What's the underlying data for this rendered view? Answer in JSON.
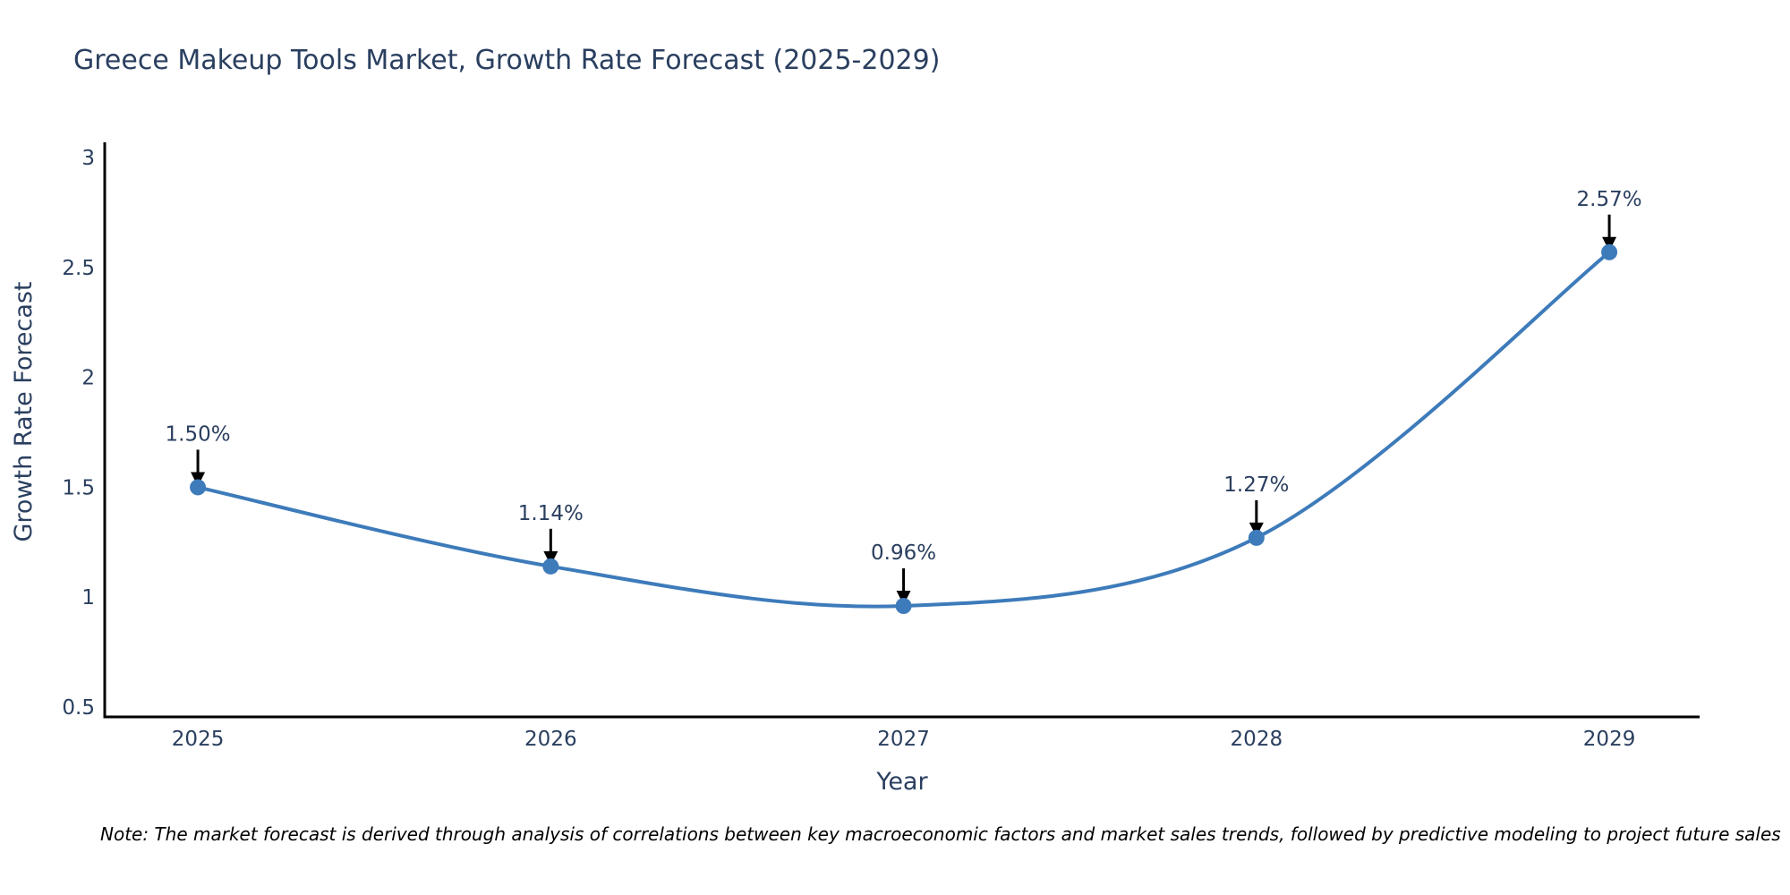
{
  "title": "Greece Makeup Tools Market, Growth Rate Forecast (2025-2029)",
  "note": "Note: The market forecast is derived through analysis of correlations between key macroeconomic factors and market sales trends, followed by predictive modeling to project future sales",
  "chart_data": {
    "type": "line",
    "title": "Greece Makeup Tools Market, Growth Rate Forecast (2025-2029)",
    "x": [
      2025,
      2026,
      2027,
      2028,
      2029
    ],
    "values": [
      1.5,
      1.14,
      0.96,
      1.27,
      2.57
    ],
    "point_labels": [
      "1.50%",
      "1.14%",
      "0.96%",
      "1.27%",
      "2.57%"
    ],
    "xtick_labels": [
      "2025",
      "2026",
      "2027",
      "2028",
      "2029"
    ],
    "yticks": [
      0.5,
      1,
      1.5,
      2,
      2.5,
      3
    ],
    "ytick_labels": [
      "0.5",
      "1",
      "1.5",
      "2",
      "2.5",
      "3"
    ],
    "xlabel": "Year",
    "ylabel": "Growth Rate Forecast",
    "ylim": [
      0.455,
      3.07
    ],
    "xlim": [
      2024.736,
      2029.256
    ],
    "line_shape": "spline",
    "grid": false,
    "legend": "none",
    "line_color": "#3d7bba",
    "marker_color": "#3d7bba",
    "axis_color": "#000000",
    "text_color": "#2a3f5f",
    "annotation_color": "#2a3f5f",
    "arrow_color": "#000000"
  }
}
